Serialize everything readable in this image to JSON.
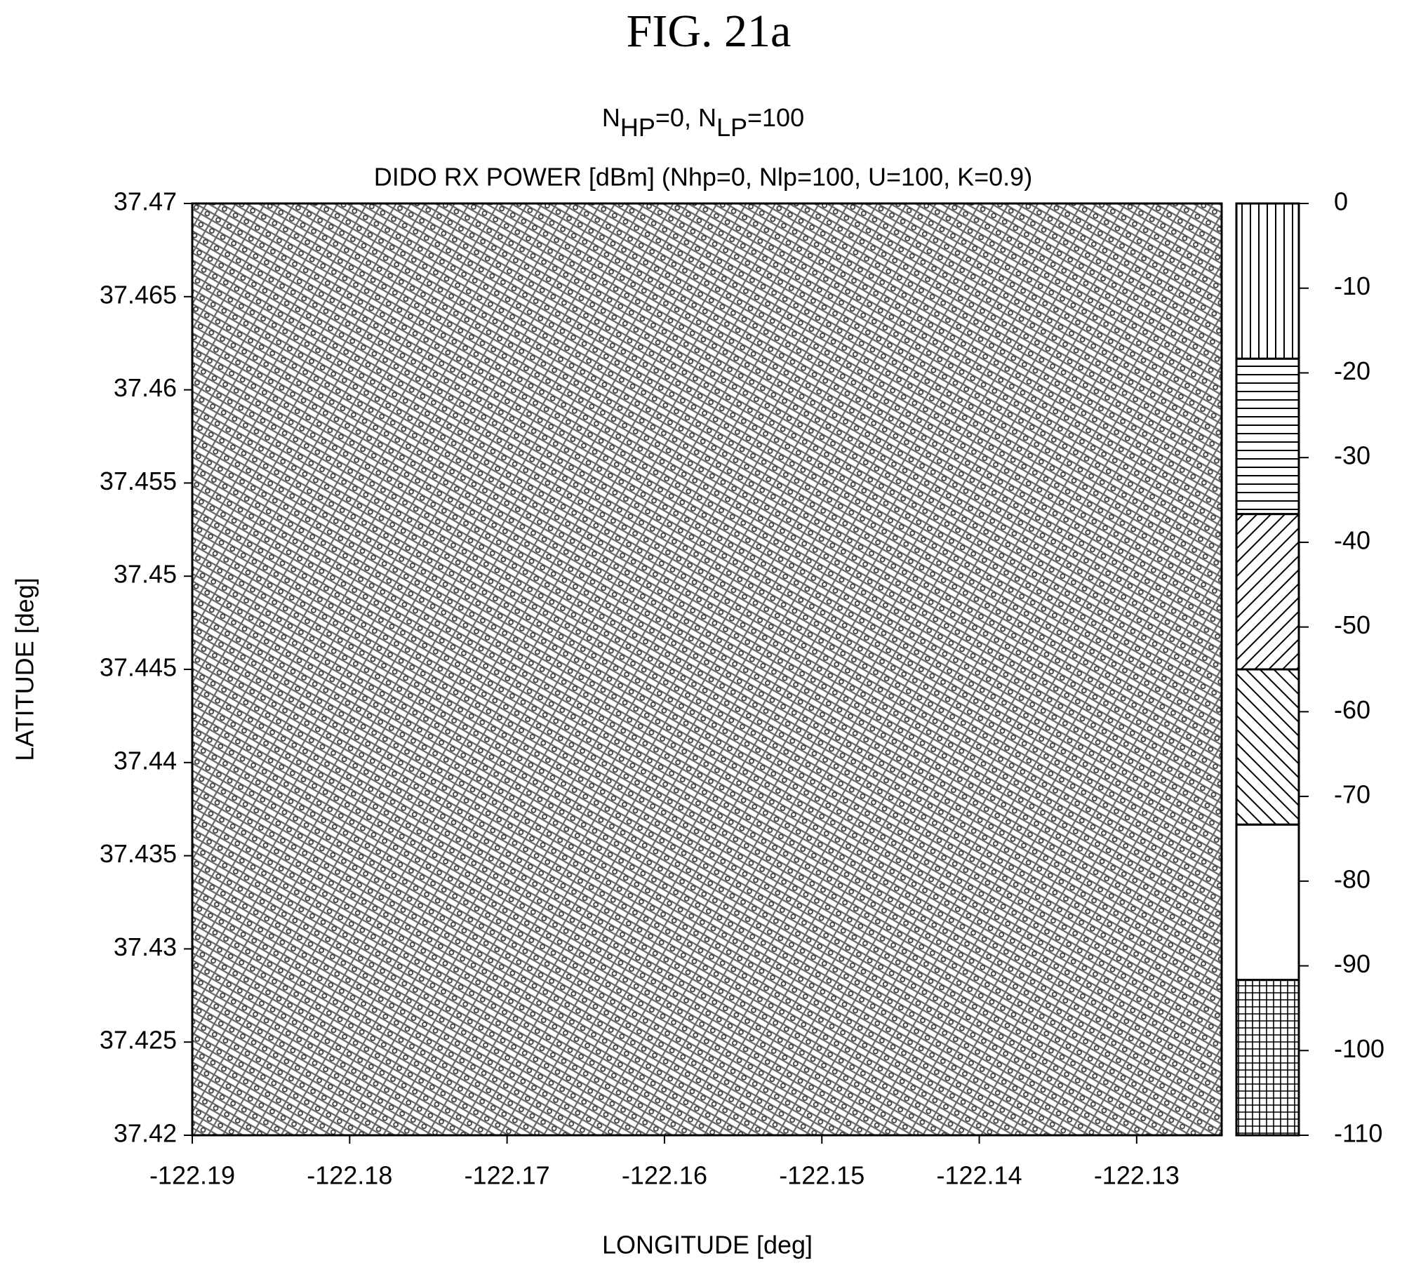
{
  "chart_data": {
    "type": "contour",
    "figure_label": "FIG. 21a",
    "subtitle_parts": [
      "N",
      "HP",
      "=0, N",
      "LP",
      "=100"
    ],
    "title": "DIDO RX POWER [dBm] (Nhp=0, Nlp=100, U=100, K=0.9)",
    "x_label": "LONGITUDE [deg]",
    "y_label": "LATITUDE [deg]",
    "xlim": [
      -122.19,
      -122.1246
    ],
    "xticks": [
      -122.19,
      -122.18,
      -122.17,
      -122.16,
      -122.15,
      -122.14,
      -122.13
    ],
    "ylim": [
      37.42,
      37.47
    ],
    "yticks": [
      37.42,
      37.425,
      37.43,
      37.435,
      37.44,
      37.445,
      37.45,
      37.455,
      37.46,
      37.465,
      37.47
    ],
    "colorbar": {
      "levels": [
        0,
        -18.33,
        -36.67,
        -55,
        -73.33,
        -91.67,
        -110
      ],
      "patterns": [
        "vertical",
        "horizontal",
        "diag-up",
        "diag-down",
        "none",
        "grid"
      ],
      "clim": [
        -110,
        0
      ],
      "ticks": [
        0,
        -10,
        -20,
        -30,
        -40,
        -50,
        -60,
        -70,
        -80,
        -90,
        -100,
        -110
      ]
    }
  }
}
